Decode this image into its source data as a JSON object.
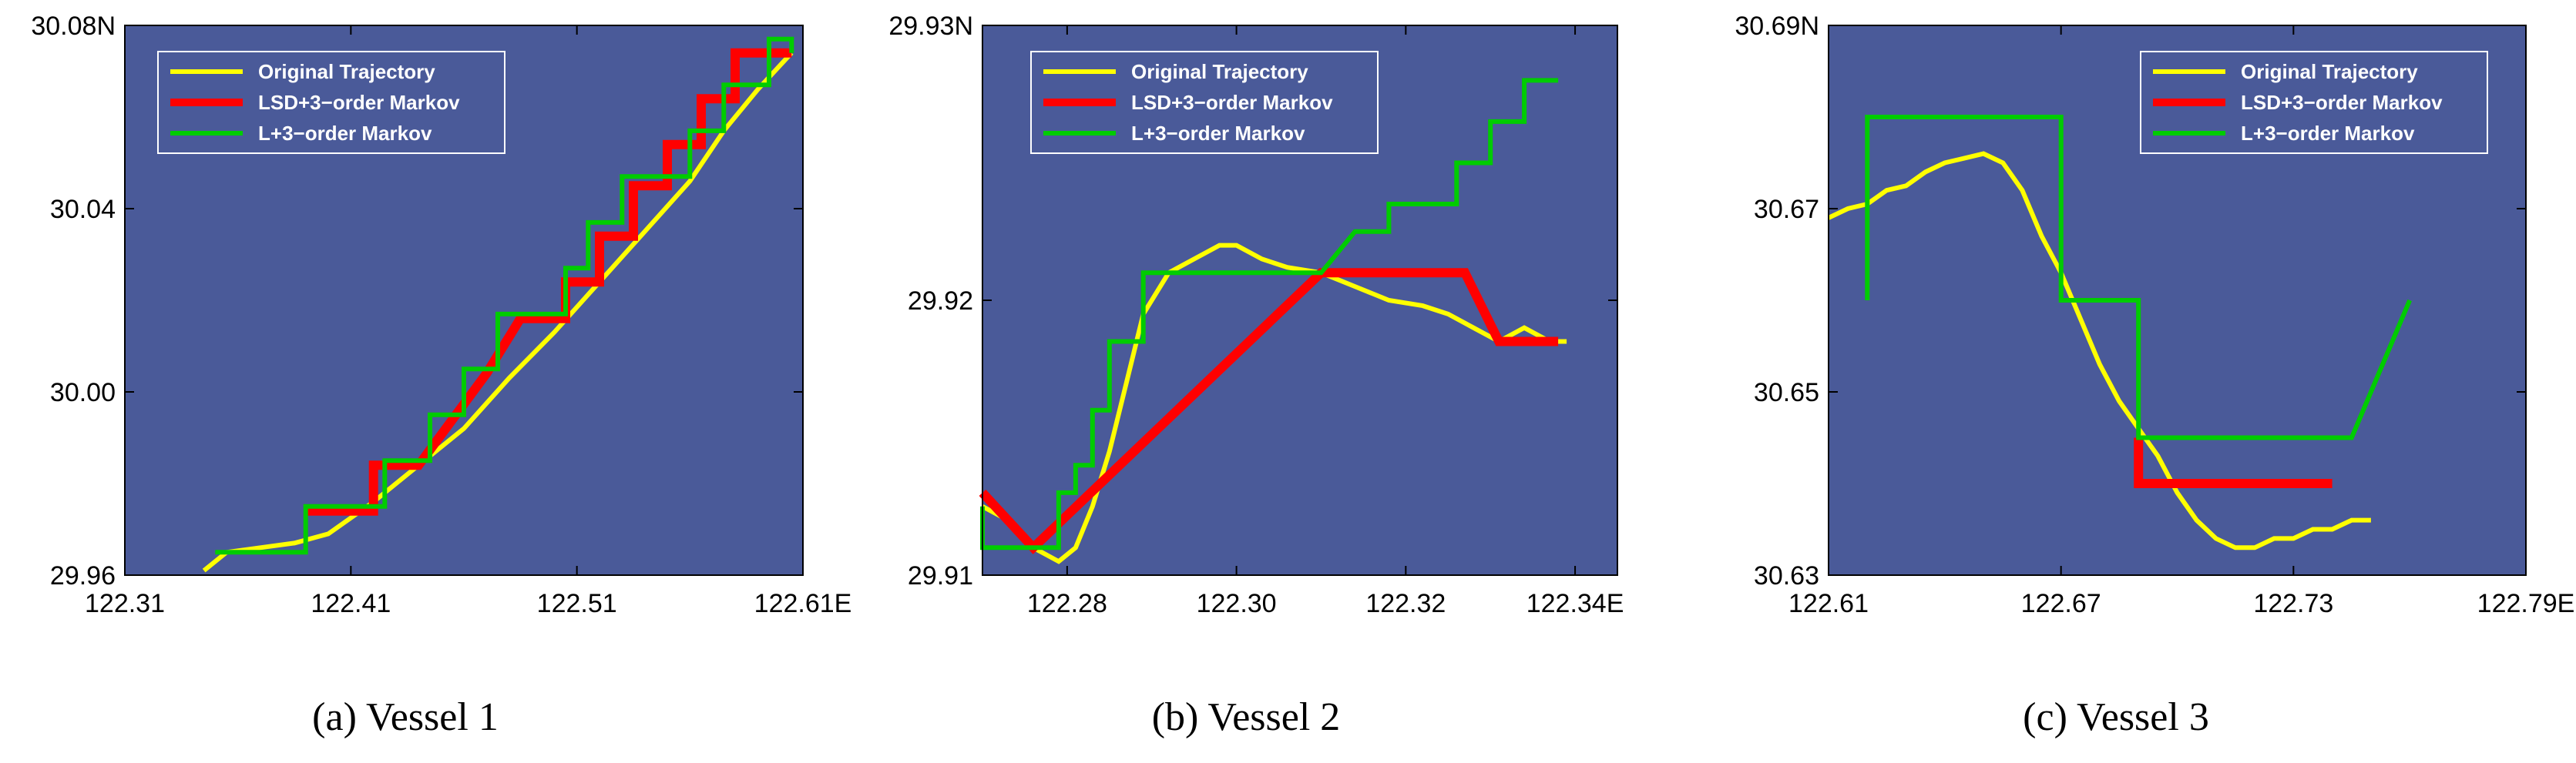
{
  "colors": {
    "plot_background": "#4a5a99",
    "original": "#ffff00",
    "lsd": "#ff0000",
    "lplus": "#00cc00",
    "legend_border": "#ffffff"
  },
  "legend_labels": [
    "Original Trajectory",
    "LSD+3−order Markov",
    "L+3−order Markov"
  ],
  "chart_data": [
    {
      "type": "line",
      "caption": "(a)  Vessel 1",
      "legend_position": "top-left",
      "grid": false,
      "xlim": [
        122.31,
        122.61
      ],
      "ylim": [
        29.96,
        30.08
      ],
      "x_ticks": [
        "122.31",
        "122.41",
        "122.51",
        "122.61E"
      ],
      "y_ticks": [
        "29.96",
        "30.00",
        "30.04",
        "30.08N"
      ],
      "series": [
        {
          "name": "Original Trajectory",
          "color_key": "original",
          "x": [
            122.345,
            122.355,
            122.37,
            122.385,
            122.4,
            122.42,
            122.44,
            122.46,
            122.48,
            122.5,
            122.52,
            122.54,
            122.56,
            122.575,
            122.59,
            122.605
          ],
          "y": [
            29.961,
            29.965,
            29.966,
            29.967,
            29.969,
            29.976,
            29.984,
            29.992,
            30.003,
            30.013,
            30.024,
            30.035,
            30.046,
            30.057,
            30.066,
            30.074
          ]
        },
        {
          "name": "LSD+3−order Markov",
          "color_key": "lsd",
          "x": [
            122.39,
            122.4,
            122.4,
            122.42,
            122.42,
            122.44,
            122.44,
            122.455,
            122.455,
            122.47,
            122.47,
            122.485,
            122.485,
            122.505,
            122.505,
            122.52,
            122.52,
            122.535,
            122.535,
            122.55,
            122.55,
            122.565,
            122.565,
            122.58,
            122.58,
            122.595,
            122.595,
            122.605
          ],
          "y": [
            29.974,
            29.974,
            29.974,
            29.974,
            29.984,
            29.984,
            29.984,
            29.994,
            29.994,
            30.004,
            30.004,
            30.016,
            30.016,
            30.016,
            30.024,
            30.024,
            30.034,
            30.034,
            30.045,
            30.045,
            30.054,
            30.054,
            30.064,
            30.064,
            30.074,
            30.074,
            30.074,
            30.074
          ]
        },
        {
          "name": "L+3−order Markov",
          "color_key": "lplus",
          "x": [
            122.35,
            122.39,
            122.39,
            122.41,
            122.41,
            122.425,
            122.425,
            122.445,
            122.445,
            122.46,
            122.46,
            122.475,
            122.475,
            122.49,
            122.49,
            122.505,
            122.505,
            122.515,
            122.515,
            122.53,
            122.53,
            122.545,
            122.545,
            122.56,
            122.56,
            122.575,
            122.575,
            122.59,
            122.59,
            122.595,
            122.595,
            122.605,
            122.605
          ],
          "y": [
            29.965,
            29.965,
            29.975,
            29.975,
            29.975,
            29.975,
            29.985,
            29.985,
            29.995,
            29.995,
            30.005,
            30.005,
            30.017,
            30.017,
            30.017,
            30.017,
            30.027,
            30.027,
            30.037,
            30.037,
            30.047,
            30.047,
            30.047,
            30.047,
            30.057,
            30.057,
            30.067,
            30.067,
            30.067,
            30.067,
            30.077,
            30.077,
            30.074
          ]
        }
      ]
    },
    {
      "type": "line",
      "caption": "(b)  Vessel 2",
      "legend_position": "top-left",
      "grid": false,
      "xlim": [
        122.27,
        122.345
      ],
      "ylim": [
        29.91,
        29.93
      ],
      "x_ticks": [
        "122.28",
        "122.30",
        "122.32",
        "122.34E"
      ],
      "y_ticks": [
        "29.91",
        "29.92",
        "29.93N"
      ],
      "series": [
        {
          "name": "Original Trajectory",
          "color_key": "original",
          "x": [
            122.27,
            122.273,
            122.276,
            122.279,
            122.281,
            122.283,
            122.285,
            122.287,
            122.289,
            122.292,
            122.295,
            122.298,
            122.3,
            122.303,
            122.306,
            122.31,
            122.314,
            122.318,
            122.322,
            122.325,
            122.328,
            122.331,
            122.334,
            122.337,
            122.339
          ],
          "y": [
            29.9125,
            29.912,
            29.911,
            29.9105,
            29.911,
            29.9125,
            29.9145,
            29.917,
            29.9195,
            29.921,
            29.9215,
            29.922,
            29.922,
            29.9215,
            29.9212,
            29.921,
            29.9205,
            29.92,
            29.9198,
            29.9195,
            29.919,
            29.9185,
            29.919,
            29.9185,
            29.9185
          ]
        },
        {
          "name": "LSD+3−order Markov",
          "color_key": "lsd",
          "x": [
            122.27,
            122.276,
            122.31,
            122.327,
            122.331,
            122.338
          ],
          "y": [
            29.913,
            29.911,
            29.921,
            29.921,
            29.9185,
            29.9185
          ]
        },
        {
          "name": "L+3−order Markov",
          "color_key": "lplus",
          "x": [
            122.27,
            122.27,
            122.276,
            122.276,
            122.279,
            122.279,
            122.281,
            122.281,
            122.283,
            122.283,
            122.285,
            122.285,
            122.287,
            122.287,
            122.289,
            122.289,
            122.31,
            122.314,
            122.318,
            122.318,
            122.322,
            122.322,
            122.326,
            122.326,
            122.33,
            122.33,
            122.334,
            122.334,
            122.338
          ],
          "y": [
            29.9125,
            29.911,
            29.911,
            29.911,
            29.911,
            29.913,
            29.913,
            29.914,
            29.914,
            29.916,
            29.916,
            29.9185,
            29.9185,
            29.9185,
            29.9185,
            29.921,
            29.921,
            29.9225,
            29.9225,
            29.9235,
            29.9235,
            29.9235,
            29.9235,
            29.925,
            29.925,
            29.9265,
            29.9265,
            29.928,
            29.928
          ]
        }
      ]
    },
    {
      "type": "line",
      "caption": "(c)  Vessel 3",
      "legend_position": "top-right",
      "grid": false,
      "xlim": [
        122.61,
        122.79
      ],
      "ylim": [
        30.63,
        30.69
      ],
      "x_ticks": [
        "122.61",
        "122.67",
        "122.73",
        "122.79E"
      ],
      "y_ticks": [
        "30.63",
        "30.65",
        "30.67",
        "30.69N"
      ],
      "series": [
        {
          "name": "Original Trajectory",
          "color_key": "original",
          "x": [
            122.61,
            122.615,
            122.62,
            122.625,
            122.63,
            122.635,
            122.64,
            122.645,
            122.65,
            122.655,
            122.66,
            122.665,
            122.67,
            122.675,
            122.68,
            122.685,
            122.69,
            122.695,
            122.7,
            122.705,
            122.71,
            122.715,
            122.72,
            122.725,
            122.73,
            122.735,
            122.74,
            122.745,
            122.75
          ],
          "y": [
            30.669,
            30.67,
            30.6705,
            30.672,
            30.6725,
            30.674,
            30.675,
            30.6755,
            30.676,
            30.675,
            30.672,
            30.667,
            30.663,
            30.658,
            30.653,
            30.649,
            30.646,
            30.643,
            30.639,
            30.636,
            30.634,
            30.633,
            30.633,
            30.634,
            30.634,
            30.635,
            30.635,
            30.636,
            30.636
          ]
        },
        {
          "name": "LSD+3−order Markov",
          "color_key": "lsd",
          "x": [
            122.69,
            122.69,
            122.74
          ],
          "y": [
            30.645,
            30.64,
            30.64
          ]
        },
        {
          "name": "L+3−order Markov",
          "color_key": "lplus",
          "x": [
            122.62,
            122.62,
            122.67,
            122.67,
            122.69,
            122.69,
            122.745,
            122.76
          ],
          "y": [
            30.66,
            30.68,
            30.68,
            30.66,
            30.66,
            30.645,
            30.645,
            30.66
          ]
        }
      ]
    }
  ]
}
